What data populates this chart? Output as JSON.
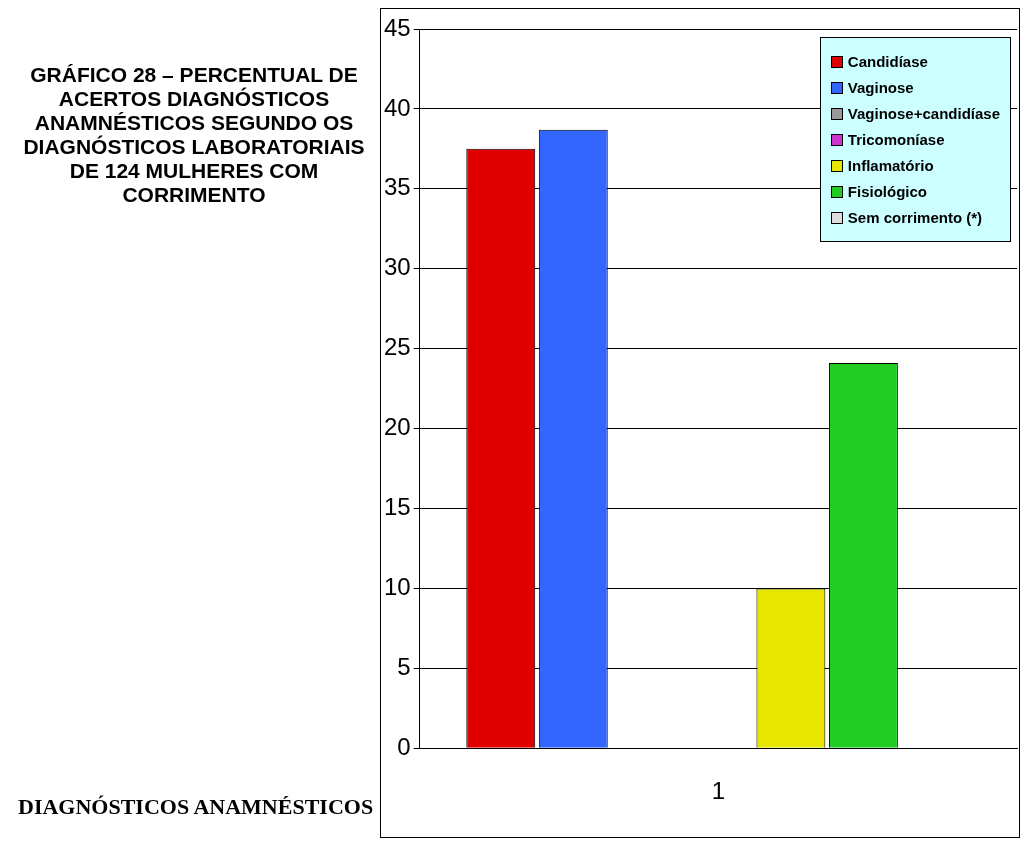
{
  "chart_data": {
    "type": "bar",
    "title": "GRÁFICO 28 – PERCENTUAL DE ACERTOS DIAGNÓSTICOS ANAMNÉSTICOS SEGUNDO OS DIAGNÓSTICOS LABORATORIAIS DE 124 MULHERES COM CORRIMENTO",
    "xlabel": "DIAGNÓSTICOS ANAMNÉSTICOS",
    "categories": [
      "1"
    ],
    "series": [
      {
        "name": "Candidíase",
        "color": "#e00000",
        "values": [
          37.5
        ]
      },
      {
        "name": "Vaginose",
        "color": "#3366ff",
        "values": [
          38.7
        ]
      },
      {
        "name": "Vaginose+candidíase",
        "color": "#999999",
        "values": [
          0
        ]
      },
      {
        "name": "Tricomoníase",
        "color": "#cc33cc",
        "values": [
          0
        ]
      },
      {
        "name": "Inflamatório",
        "color": "#e6e600",
        "values": [
          10
        ]
      },
      {
        "name": "Fisiológico",
        "color": "#22cc22",
        "values": [
          24.1
        ]
      },
      {
        "name": "Sem corrimento (*)",
        "color": "#dddddd",
        "values": [
          0
        ]
      }
    ],
    "ylim": [
      0,
      45
    ],
    "yticks": [
      0,
      5,
      10,
      15,
      20,
      25,
      30,
      35,
      40,
      45
    ],
    "grid": "y",
    "legend": "top right"
  }
}
